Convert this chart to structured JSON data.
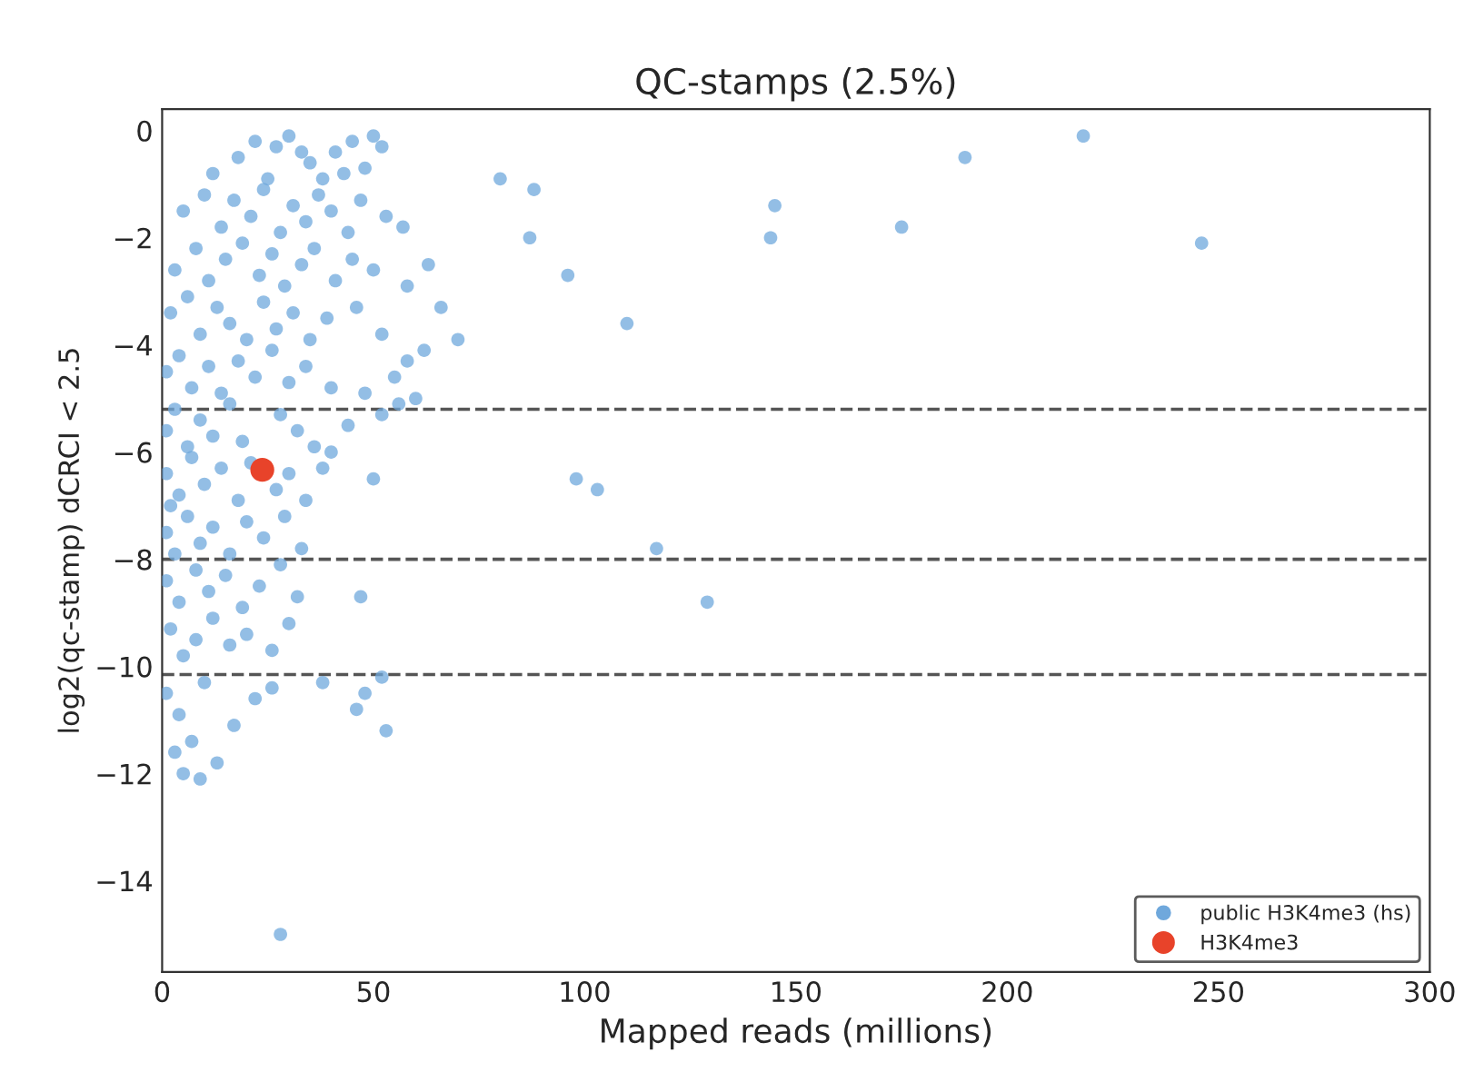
{
  "chart_data": {
    "type": "scatter",
    "title": "QC-stamps (2.5%)",
    "xlabel": "Mapped reads (millions)",
    "ylabel": "log2(qc-stamp) dCRCI < 2.5",
    "xlim": [
      0,
      300
    ],
    "ylim": [
      -15.7,
      0.4
    ],
    "xticks": [
      0,
      50,
      100,
      150,
      200,
      250,
      300
    ],
    "yticks": [
      0,
      {
        "value": -2,
        "label": "−2"
      },
      {
        "value": -4,
        "label": "−4"
      },
      {
        "value": -6,
        "label": "−6"
      },
      {
        "value": -8,
        "label": "−8"
      },
      {
        "value": -10,
        "label": "−10"
      },
      {
        "value": -12,
        "label": "−12"
      },
      {
        "value": -14,
        "label": "−14"
      }
    ],
    "grid": false,
    "legend": "bottom right",
    "marker": "circle",
    "ref_lines": [
      {
        "axis": "y",
        "value": -5.2,
        "color": "#555555",
        "line_style": "dashed"
      },
      {
        "axis": "y",
        "value": -8.0,
        "color": "#555555",
        "line_style": "dashed"
      },
      {
        "axis": "y",
        "value": -10.15,
        "color": "#555555",
        "line_style": "dashed"
      }
    ],
    "series": [
      {
        "name": "public H3K4me3 (hs)",
        "color": "#6fa8dc",
        "x": [
          12,
          18,
          22,
          27,
          30,
          35,
          38,
          41,
          45,
          48,
          50,
          52,
          25,
          33,
          43,
          5,
          10,
          14,
          17,
          21,
          24,
          28,
          31,
          34,
          37,
          40,
          44,
          47,
          53,
          57,
          3,
          8,
          11,
          15,
          19,
          23,
          26,
          29,
          33,
          36,
          41,
          45,
          50,
          58,
          63,
          2,
          6,
          9,
          13,
          16,
          20,
          24,
          27,
          31,
          35,
          39,
          46,
          52,
          66,
          70,
          1,
          4,
          7,
          11,
          14,
          18,
          22,
          26,
          30,
          34,
          40,
          55,
          58,
          62,
          48,
          1,
          3,
          6,
          9,
          12,
          16,
          19,
          28,
          32,
          36,
          44,
          52,
          56,
          60,
          40,
          1,
          4,
          7,
          10,
          14,
          18,
          21,
          27,
          30,
          34,
          38,
          50,
          2,
          1,
          3,
          6,
          9,
          12,
          16,
          20,
          24,
          29,
          33,
          47,
          1,
          4,
          8,
          11,
          15,
          19,
          23,
          28,
          32,
          2,
          5,
          8,
          12,
          16,
          20,
          26,
          30,
          1,
          4,
          7,
          10,
          13,
          17,
          22,
          26,
          38,
          46,
          48,
          52,
          53,
          5,
          9,
          3,
          28,
          80,
          88,
          87,
          96,
          98,
          103,
          110,
          117,
          129,
          145,
          144,
          175,
          190,
          218,
          246
        ],
        "values": [
          -0.8,
          -0.5,
          -0.2,
          -0.3,
          -0.1,
          -0.6,
          -0.9,
          -0.4,
          -0.2,
          -0.7,
          -0.1,
          -0.3,
          -0.9,
          -0.4,
          -0.8,
          -1.5,
          -1.2,
          -1.8,
          -1.3,
          -1.6,
          -1.1,
          -1.9,
          -1.4,
          -1.7,
          -1.2,
          -1.5,
          -1.9,
          -1.3,
          -1.6,
          -1.8,
          -2.6,
          -2.2,
          -2.8,
          -2.4,
          -2.1,
          -2.7,
          -2.3,
          -2.9,
          -2.5,
          -2.2,
          -2.8,
          -2.4,
          -2.6,
          -2.9,
          -2.5,
          -3.4,
          -3.1,
          -3.8,
          -3.3,
          -3.6,
          -3.9,
          -3.2,
          -3.7,
          -3.4,
          -3.9,
          -3.5,
          -3.3,
          -3.8,
          -3.3,
          -3.9,
          -4.5,
          -4.2,
          -4.8,
          -4.4,
          -4.9,
          -4.3,
          -4.6,
          -4.1,
          -4.7,
          -4.4,
          -4.8,
          -4.6,
          -4.3,
          -4.1,
          -4.9,
          -5.6,
          -5.2,
          -5.9,
          -5.4,
          -5.7,
          -5.1,
          -5.8,
          -5.3,
          -5.6,
          -5.9,
          -5.5,
          -5.3,
          -5.1,
          -5.0,
          -6.0,
          -6.4,
          -6.8,
          -6.1,
          -6.6,
          -6.3,
          -6.9,
          -6.2,
          -6.7,
          -6.4,
          -6.9,
          -6.3,
          -6.5,
          -7.0,
          -7.5,
          -7.9,
          -7.2,
          -7.7,
          -7.4,
          -7.9,
          -7.3,
          -7.6,
          -7.2,
          -7.8,
          -8.7,
          -8.4,
          -8.8,
          -8.2,
          -8.6,
          -8.3,
          -8.9,
          -8.5,
          -8.1,
          -8.7,
          -9.3,
          -9.8,
          -9.5,
          -9.1,
          -9.6,
          -9.4,
          -9.7,
          -9.2,
          -10.5,
          -10.9,
          -11.4,
          -10.3,
          -11.8,
          -11.1,
          -10.6,
          -10.4,
          -10.3,
          -10.8,
          -10.5,
          -10.2,
          -11.2,
          -12.0,
          -12.1,
          -11.6,
          -15.0,
          -0.9,
          -1.1,
          -2.0,
          -2.7,
          -6.5,
          -6.7,
          -3.6,
          -7.8,
          -8.8,
          -1.4,
          -2.0,
          -1.8,
          -0.5,
          -0.1,
          -2.1
        ]
      },
      {
        "name": "H3K4me3",
        "color": "#e8432a",
        "x": [
          23.7
        ],
        "values": [
          -6.33
        ]
      }
    ]
  }
}
